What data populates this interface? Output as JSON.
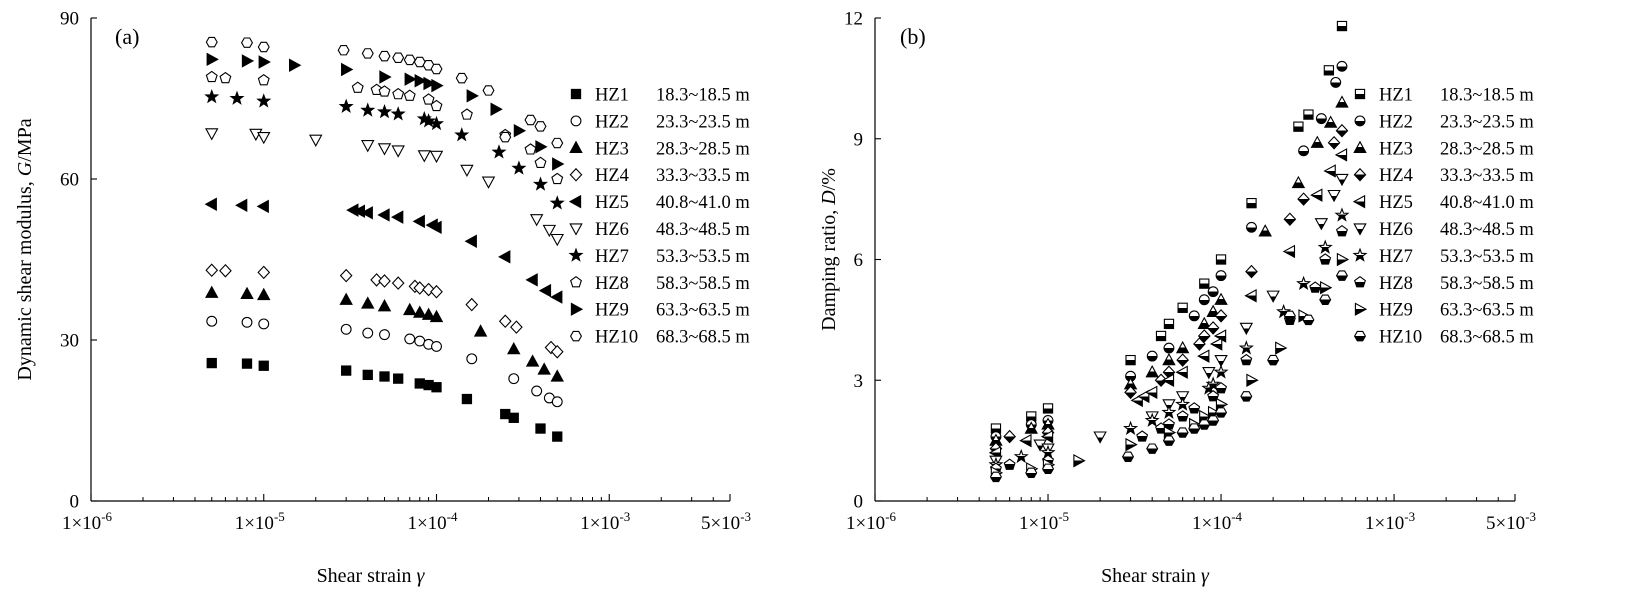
{
  "chart_data": [
    {
      "type": "scatter",
      "panel_label": "(a)",
      "xlabel": "Shear strain",
      "xlabel_symbol": "γ",
      "ylabel": "Dynamic shear modulus,",
      "ylabel_symbol": "G",
      "ylabel_unit": "/MPa",
      "x_scale": "log",
      "xlim": [
        1e-06,
        0.005
      ],
      "ylim": [
        0,
        90
      ],
      "y_ticks": [
        "0",
        "30",
        "60",
        "90"
      ],
      "legend_position": "right",
      "series": [
        {
          "name": "HZ1",
          "depth": "18.3~18.5 m",
          "marker": "square-filled",
          "x": [
            5e-06,
            8e-06,
            1e-05,
            3e-05,
            4e-05,
            5e-05,
            6e-05,
            8e-05,
            9e-05,
            0.0001,
            0.00015,
            0.00025,
            0.00028,
            0.0004,
            0.0005
          ],
          "y": [
            25.7,
            25.6,
            25.2,
            24.3,
            23.5,
            23.2,
            22.8,
            21.9,
            21.6,
            21.2,
            19.0,
            16.2,
            15.5,
            13.5,
            12.0
          ]
        },
        {
          "name": "HZ2",
          "depth": "23.3~23.5 m",
          "marker": "circle-open",
          "x": [
            5e-06,
            8e-06,
            1e-05,
            3e-05,
            4e-05,
            5e-05,
            7e-05,
            8e-05,
            9e-05,
            0.0001,
            0.00016,
            0.00028,
            0.00038,
            0.00045,
            0.0005
          ],
          "y": [
            33.5,
            33.3,
            33.0,
            32.0,
            31.3,
            31.0,
            30.2,
            29.8,
            29.2,
            28.8,
            26.5,
            22.8,
            20.5,
            19.2,
            18.5
          ]
        },
        {
          "name": "HZ3",
          "depth": "28.3~28.5 m",
          "marker": "triangle-filled",
          "x": [
            5e-06,
            8e-06,
            1e-05,
            3e-05,
            4e-05,
            5e-05,
            7e-05,
            8e-05,
            9e-05,
            0.0001,
            0.00018,
            0.00028,
            0.00036,
            0.00042,
            0.0005
          ],
          "y": [
            38.8,
            38.6,
            38.4,
            37.5,
            36.8,
            36.3,
            35.6,
            35.1,
            34.7,
            34.3,
            31.6,
            28.3,
            26.0,
            24.5,
            23.2
          ]
        },
        {
          "name": "HZ4",
          "depth": "33.3~33.5 m",
          "marker": "diamond-open",
          "x": [
            5e-06,
            6e-06,
            1e-05,
            3e-05,
            4.5e-05,
            5e-05,
            6e-05,
            7.5e-05,
            8e-05,
            9e-05,
            0.0001,
            0.00016,
            0.00025,
            0.00029,
            0.00046,
            0.0005
          ],
          "y": [
            43.0,
            42.9,
            42.6,
            42.0,
            41.2,
            41.0,
            40.6,
            40.0,
            39.7,
            39.4,
            39.0,
            36.6,
            33.5,
            32.4,
            28.6,
            27.8
          ]
        },
        {
          "name": "HZ5",
          "depth": "40.8~41.0 m",
          "marker": "left-triangle-filled",
          "x": [
            5e-06,
            7.5e-06,
            1e-05,
            3.3e-05,
            3.6e-05,
            4e-05,
            5e-05,
            6e-05,
            8e-05,
            9.5e-05,
            0.0001,
            0.00016,
            0.00025,
            0.00036,
            0.00043,
            0.0005
          ],
          "y": [
            55.3,
            55.1,
            54.9,
            54.2,
            54.0,
            53.7,
            53.3,
            52.9,
            52.1,
            51.4,
            51.0,
            48.4,
            45.5,
            41.2,
            39.2,
            38.0
          ]
        },
        {
          "name": "HZ6",
          "depth": "48.3~48.5 m",
          "marker": "triangle-down-open",
          "x": [
            5e-06,
            9e-06,
            1e-05,
            2e-05,
            4e-05,
            5e-05,
            6e-05,
            8.5e-05,
            0.0001,
            0.00015,
            0.0002,
            0.00038,
            0.00045,
            0.0005
          ],
          "y": [
            68.5,
            68.4,
            67.8,
            67.3,
            66.3,
            65.7,
            65.3,
            64.4,
            64.3,
            61.7,
            59.5,
            52.5,
            50.5,
            48.8
          ]
        },
        {
          "name": "HZ7",
          "depth": "53.3~53.5 m",
          "marker": "star-filled",
          "x": [
            5e-06,
            7e-06,
            1e-05,
            3e-05,
            4e-05,
            5e-05,
            6e-05,
            8.5e-05,
            9e-05,
            0.0001,
            0.00014,
            0.00023,
            0.0003,
            0.0004,
            0.0005
          ],
          "y": [
            75.3,
            75.0,
            74.5,
            73.5,
            72.8,
            72.5,
            72.1,
            71.2,
            70.8,
            70.3,
            68.2,
            65.0,
            62.0,
            59.0,
            55.5
          ]
        },
        {
          "name": "HZ8",
          "depth": "58.3~58.5 m",
          "marker": "pentagon-open",
          "x": [
            5e-06,
            6e-06,
            1e-05,
            3.5e-05,
            4.5e-05,
            5e-05,
            6e-05,
            7e-05,
            9e-05,
            0.0001,
            0.00015,
            0.00025,
            0.00035,
            0.0004,
            0.0005
          ],
          "y": [
            79.0,
            78.8,
            78.4,
            77.0,
            76.6,
            76.3,
            75.8,
            75.5,
            74.8,
            73.6,
            72.0,
            68.2,
            65.5,
            63.0,
            60.0
          ]
        },
        {
          "name": "HZ9",
          "depth": "63.3~63.5 m",
          "marker": "right-triangle-filled",
          "x": [
            5e-06,
            8e-06,
            1e-05,
            1.5e-05,
            3e-05,
            5e-05,
            7e-05,
            8e-05,
            9e-05,
            0.0001,
            0.00016,
            0.00022,
            0.0003,
            0.0004,
            0.0005
          ],
          "y": [
            82.3,
            82.0,
            81.8,
            81.2,
            80.4,
            79.0,
            78.6,
            78.3,
            77.8,
            77.4,
            75.5,
            73.0,
            69.0,
            66.0,
            62.8
          ]
        },
        {
          "name": "HZ10",
          "depth": "68.3~68.5 m",
          "marker": "hexagon-open",
          "x": [
            5e-06,
            8e-06,
            1e-05,
            2.9e-05,
            4e-05,
            5e-05,
            6e-05,
            7e-05,
            8e-05,
            9e-05,
            0.0001,
            0.00014,
            0.0002,
            0.00025,
            0.00035,
            0.0004,
            0.0005
          ],
          "y": [
            85.5,
            85.4,
            84.6,
            84.0,
            83.4,
            82.9,
            82.6,
            82.2,
            81.8,
            81.2,
            80.5,
            78.8,
            76.5,
            67.8,
            71.0,
            69.8,
            66.7
          ]
        }
      ]
    },
    {
      "type": "scatter",
      "panel_label": "(b)",
      "xlabel": "Shear strain",
      "xlabel_symbol": "γ",
      "ylabel": "Damping ratio,",
      "ylabel_symbol": "D",
      "ylabel_unit": "/%",
      "x_scale": "log",
      "xlim": [
        1e-06,
        0.005
      ],
      "ylim": [
        0,
        12
      ],
      "y_ticks": [
        "0",
        "3",
        "6",
        "9",
        "12"
      ],
      "legend_position": "right",
      "series": [
        {
          "name": "HZ1",
          "depth": "18.3~18.5 m",
          "marker": "square-half",
          "x": [
            5e-06,
            8e-06,
            1e-05,
            3e-05,
            4.5e-05,
            5e-05,
            6e-05,
            8e-05,
            0.0001,
            0.00015,
            0.00028,
            0.00032,
            0.00042,
            0.0005
          ],
          "y": [
            1.8,
            2.1,
            2.3,
            3.5,
            4.1,
            4.4,
            4.8,
            5.4,
            6.0,
            7.4,
            9.3,
            9.6,
            10.7,
            11.8
          ]
        },
        {
          "name": "HZ2",
          "depth": "23.3~23.5 m",
          "marker": "circle-half",
          "x": [
            5e-06,
            8e-06,
            1e-05,
            3e-05,
            4e-05,
            5e-05,
            7e-05,
            8e-05,
            9e-05,
            0.0001,
            0.00015,
            0.0003,
            0.00038,
            0.00046,
            0.0005
          ],
          "y": [
            1.6,
            1.9,
            2.0,
            3.1,
            3.6,
            3.8,
            4.6,
            5.0,
            5.2,
            5.6,
            6.8,
            8.7,
            9.5,
            10.4,
            10.8
          ]
        },
        {
          "name": "HZ3",
          "depth": "28.3~28.5 m",
          "marker": "triangle-half",
          "x": [
            5e-06,
            8e-06,
            1e-05,
            3e-05,
            4e-05,
            5e-05,
            6e-05,
            8e-05,
            9e-05,
            0.0001,
            0.00018,
            0.00028,
            0.00036,
            0.00043,
            0.0005
          ],
          "y": [
            1.5,
            1.8,
            1.9,
            2.9,
            3.2,
            3.5,
            3.8,
            4.4,
            4.7,
            5.0,
            6.7,
            7.9,
            8.9,
            9.4,
            9.9
          ]
        },
        {
          "name": "HZ4",
          "depth": "33.3~33.5 m",
          "marker": "diamond-half",
          "x": [
            5e-06,
            6e-06,
            1e-05,
            3e-05,
            4.5e-05,
            5e-05,
            6e-05,
            7.5e-05,
            8e-05,
            9e-05,
            0.0001,
            0.00015,
            0.00025,
            0.0003,
            0.00045,
            0.0005
          ],
          "y": [
            1.3,
            1.6,
            1.7,
            2.7,
            3.0,
            3.2,
            3.5,
            3.9,
            4.1,
            4.3,
            4.6,
            5.7,
            7.0,
            7.5,
            8.9,
            9.2
          ]
        },
        {
          "name": "HZ5",
          "depth": "40.8~41.0 m",
          "marker": "left-triangle-half",
          "x": [
            5e-06,
            7.5e-06,
            1e-05,
            3.3e-05,
            3.6e-05,
            4e-05,
            5e-05,
            6e-05,
            8e-05,
            9.5e-05,
            0.0001,
            0.00015,
            0.00025,
            0.00036,
            0.00043,
            0.0005
          ],
          "y": [
            1.2,
            1.5,
            1.6,
            2.5,
            2.6,
            2.7,
            3.0,
            3.2,
            3.6,
            3.9,
            4.1,
            5.1,
            6.2,
            7.6,
            8.2,
            8.6
          ]
        },
        {
          "name": "HZ6",
          "depth": "48.3~48.5 m",
          "marker": "triangle-down-half",
          "x": [
            5e-06,
            9e-06,
            1e-05,
            2e-05,
            4e-05,
            5e-05,
            6e-05,
            8.5e-05,
            0.0001,
            0.00014,
            0.0002,
            0.00038,
            0.00045,
            0.0005
          ],
          "y": [
            1.0,
            1.4,
            1.3,
            1.6,
            2.1,
            2.4,
            2.6,
            3.2,
            3.5,
            4.3,
            5.1,
            6.9,
            7.6,
            8.0
          ]
        },
        {
          "name": "HZ7",
          "depth": "53.3~53.5 m",
          "marker": "star-half",
          "x": [
            5e-06,
            7e-06,
            1e-05,
            3e-05,
            4e-05,
            5e-05,
            6e-05,
            8.5e-05,
            9e-05,
            0.0001,
            0.00014,
            0.00023,
            0.0003,
            0.0004,
            0.0005
          ],
          "y": [
            0.9,
            1.1,
            1.2,
            1.8,
            2.0,
            2.2,
            2.4,
            2.8,
            2.9,
            3.2,
            3.8,
            4.7,
            5.4,
            6.3,
            7.1
          ]
        },
        {
          "name": "HZ8",
          "depth": "58.3~58.5 m",
          "marker": "pentagon-half",
          "x": [
            5e-06,
            6e-06,
            1e-05,
            3.5e-05,
            4.5e-05,
            5e-05,
            6e-05,
            7e-05,
            9e-05,
            0.0001,
            0.00014,
            0.00025,
            0.00035,
            0.0004,
            0.0005
          ],
          "y": [
            0.8,
            0.9,
            1.0,
            1.6,
            1.8,
            1.9,
            2.1,
            2.3,
            2.6,
            2.8,
            3.5,
            4.5,
            5.3,
            6.0,
            6.7
          ]
        },
        {
          "name": "HZ9",
          "depth": "63.3~63.5 m",
          "marker": "right-triangle-half",
          "x": [
            5e-06,
            8e-06,
            1e-05,
            1.5e-05,
            3e-05,
            5e-05,
            7e-05,
            8e-05,
            9e-05,
            0.0001,
            0.00015,
            0.00022,
            0.0003,
            0.0004,
            0.0005
          ],
          "y": [
            0.7,
            0.8,
            0.9,
            1.0,
            1.4,
            1.7,
            1.9,
            2.1,
            2.2,
            2.4,
            3.0,
            3.8,
            4.6,
            5.3,
            6.0
          ]
        },
        {
          "name": "HZ10",
          "depth": "68.3~68.5 m",
          "marker": "hexagon-half",
          "x": [
            5e-06,
            8e-06,
            1e-05,
            2.9e-05,
            4e-05,
            5e-05,
            6e-05,
            7e-05,
            8e-05,
            9e-05,
            0.0001,
            0.00014,
            0.0002,
            0.00025,
            0.00032,
            0.0004,
            0.0005
          ],
          "y": [
            0.6,
            0.7,
            0.8,
            1.1,
            1.3,
            1.5,
            1.7,
            1.8,
            1.9,
            2.0,
            2.2,
            2.6,
            3.5,
            4.6,
            4.5,
            5.0,
            5.6
          ]
        }
      ]
    }
  ]
}
